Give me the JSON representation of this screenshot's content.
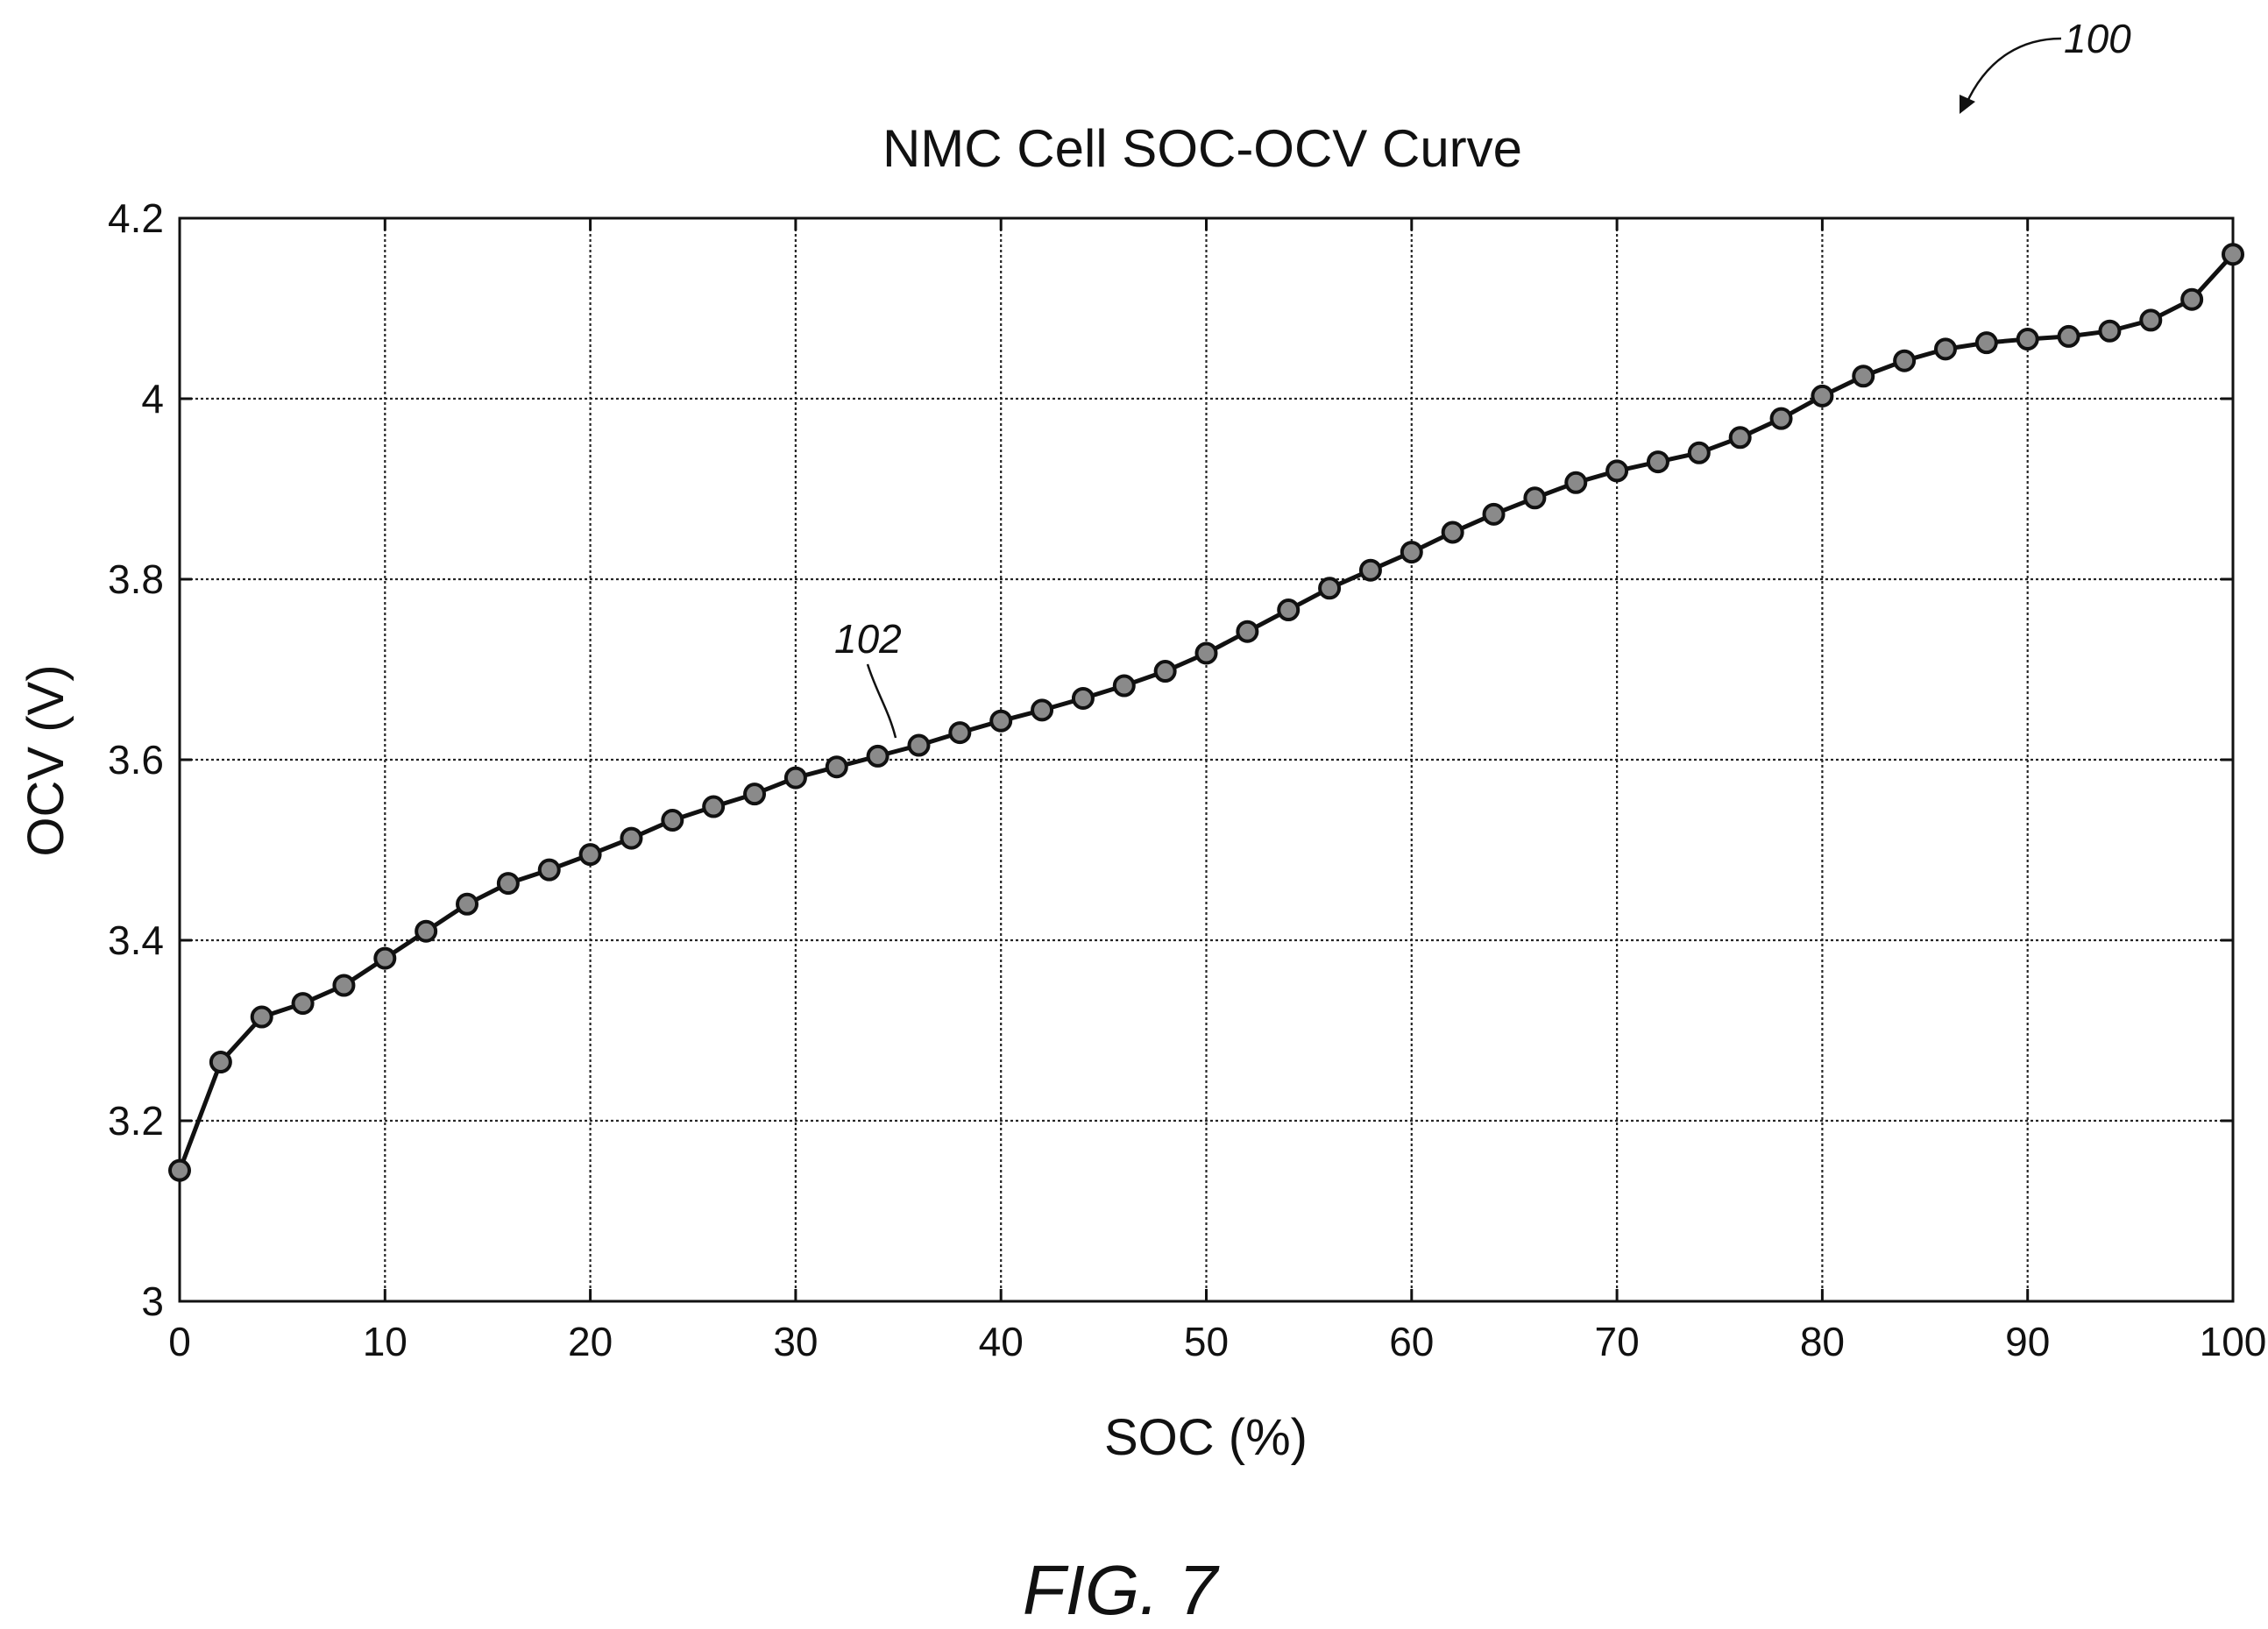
{
  "chart_data": {
    "type": "line",
    "title": "NMC Cell SOC-OCV Curve",
    "xlabel": "SOC (%)",
    "ylabel": "OCV (V)",
    "xlim": [
      0,
      100
    ],
    "ylim": [
      3,
      4.2
    ],
    "xticks": [
      0,
      10,
      20,
      30,
      40,
      50,
      60,
      70,
      80,
      90,
      100
    ],
    "yticks": [
      3,
      3.2,
      3.4,
      3.6,
      3.8,
      4,
      4.2
    ],
    "grid": true,
    "marker": "circle",
    "series": [
      {
        "x": [
          0,
          2,
          4,
          6,
          8,
          10,
          12,
          14,
          16,
          18,
          20,
          22,
          24,
          26,
          28,
          30,
          32,
          34,
          36,
          38,
          40,
          42,
          44,
          46,
          48,
          50,
          52,
          54,
          56,
          58,
          60,
          62,
          64,
          66,
          68,
          70,
          72,
          74,
          76,
          78,
          80,
          82,
          84,
          86,
          88,
          90,
          92,
          94,
          96,
          98,
          100
        ],
        "values": [
          3.145,
          3.265,
          3.315,
          3.33,
          3.35,
          3.38,
          3.41,
          3.44,
          3.463,
          3.478,
          3.495,
          3.513,
          3.533,
          3.548,
          3.562,
          3.58,
          3.592,
          3.604,
          3.616,
          3.63,
          3.643,
          3.655,
          3.668,
          3.682,
          3.698,
          3.718,
          3.742,
          3.766,
          3.79,
          3.81,
          3.83,
          3.852,
          3.872,
          3.89,
          3.907,
          3.92,
          3.93,
          3.94,
          3.957,
          3.978,
          4.003,
          4.025,
          4.042,
          4.055,
          4.062,
          4.066,
          4.069,
          4.075,
          4.087,
          4.11,
          4.16
        ]
      }
    ],
    "annotations": {
      "figure_ref": "100",
      "curve_ref": "102",
      "figure_label": "FIG. 7"
    }
  }
}
